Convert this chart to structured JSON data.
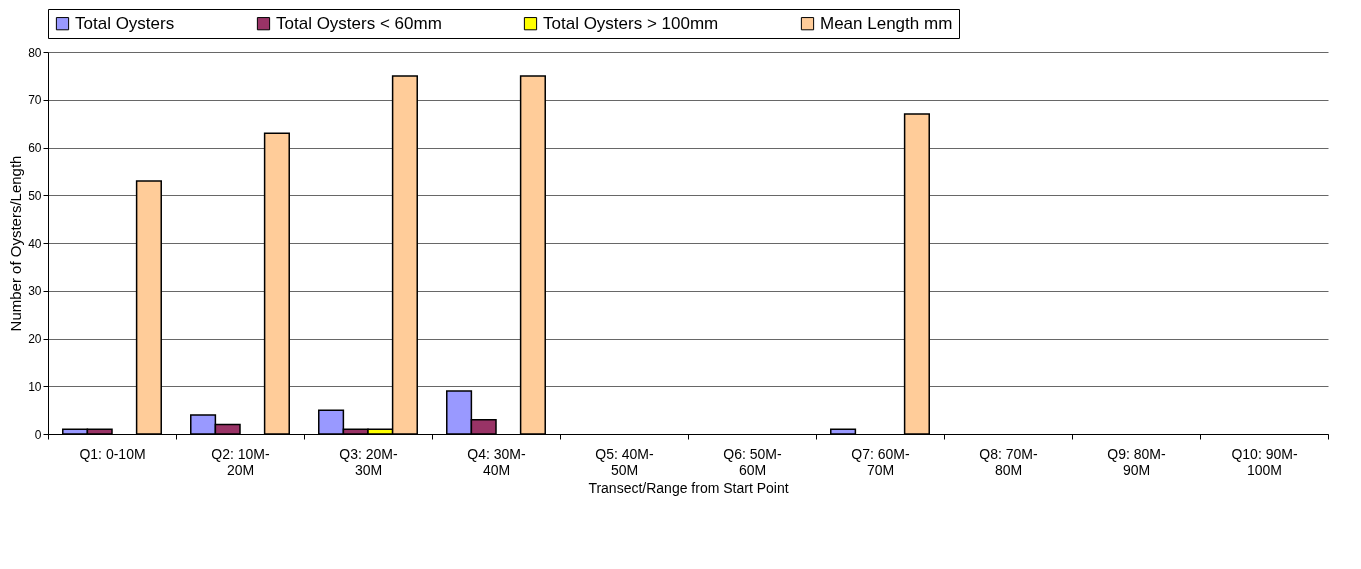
{
  "chart_data": {
    "type": "bar",
    "xlabel": "Transect/Range from Start Point",
    "ylabel": "Number of Oysters/Length",
    "categories": [
      "Q1: 0-10M",
      "Q2: 10M-20M",
      "Q3: 20M-30M",
      "Q4: 30M-40M",
      "Q5: 40M-50M",
      "Q6: 50M-60M",
      "Q7: 60M-70M",
      "Q8: 70M-80M",
      "Q9: 80M-90M",
      "Q10: 90M-100M"
    ],
    "series": [
      {
        "name": "Total Oysters",
        "color": "#9999ff",
        "values": [
          1,
          4,
          5,
          9,
          0,
          0,
          1,
          0,
          0,
          0
        ]
      },
      {
        "name": "Total Oysters < 60mm",
        "color": "#993366",
        "values": [
          1,
          2,
          1,
          3,
          0,
          0,
          0,
          0,
          0,
          0
        ]
      },
      {
        "name": "Total Oysters > 100mm",
        "color": "#ffff00",
        "values": [
          0,
          0,
          1,
          0,
          0,
          0,
          0,
          0,
          0,
          0
        ]
      },
      {
        "name": "Mean Length mm",
        "color": "#ffcc99",
        "values": [
          53,
          63,
          75,
          75,
          0,
          0,
          67,
          0,
          0,
          0
        ]
      }
    ],
    "ylim": [
      0,
      80
    ],
    "yticks": [
      0,
      10,
      20,
      30,
      40,
      50,
      60,
      70,
      80
    ],
    "grid": "y",
    "legend": "top"
  }
}
